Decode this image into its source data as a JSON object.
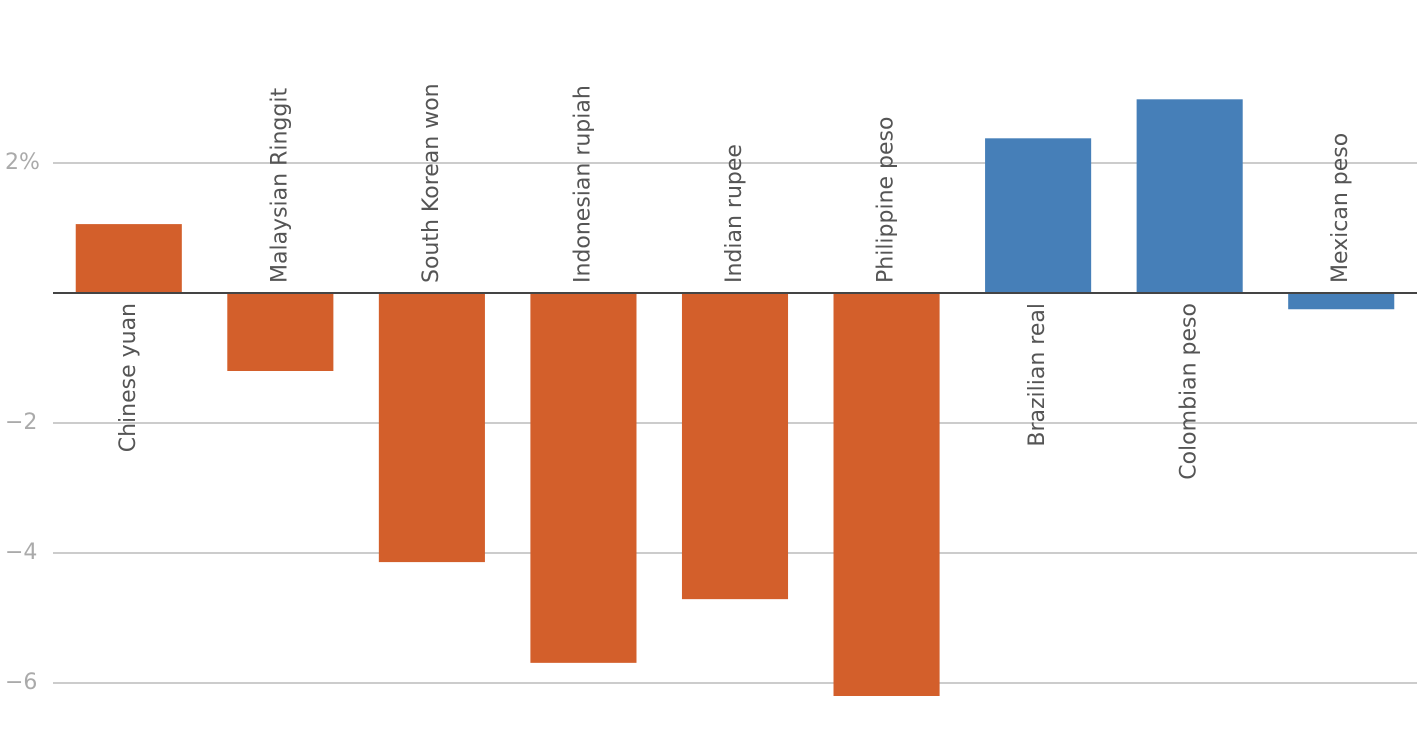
{
  "chart_data": {
    "type": "bar",
    "categories": [
      "Chinese yuan",
      "Malaysian Ringgit",
      "South Korean won",
      "Indonesian rupiah",
      "Indian rupee",
      "Philippine peso",
      "Brazilian real",
      "Colombian peso",
      "Mexican peso"
    ],
    "values": [
      1.06,
      -1.2,
      -4.14,
      -5.69,
      -4.71,
      -6.2,
      2.38,
      2.98,
      -0.25
    ],
    "colors": [
      "#d35f2b",
      "#d35f2b",
      "#d35f2b",
      "#d35f2b",
      "#d35f2b",
      "#d35f2b",
      "#467fb8",
      "#467fb8",
      "#467fb8"
    ],
    "ylim": [
      -6.5,
      4
    ],
    "yticks": [
      {
        "value": 2,
        "label": "2%"
      },
      {
        "value": -2,
        "label": "−2"
      },
      {
        "value": -4,
        "label": "−4"
      },
      {
        "value": -6,
        "label": "−6"
      }
    ],
    "grid": true
  }
}
